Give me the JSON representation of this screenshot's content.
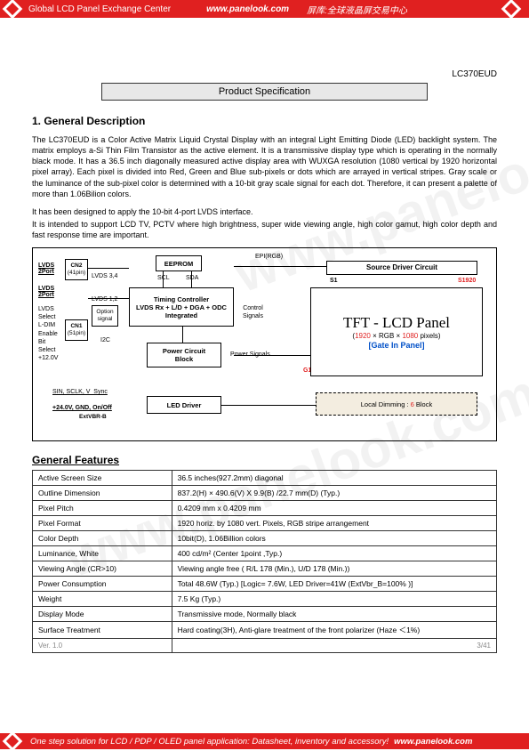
{
  "header": {
    "left": "Global LCD Panel Exchange Center",
    "url": "www.panelook.com",
    "cn": "屏库:全球液晶屏交易中心"
  },
  "footer": {
    "text": "One step solution for LCD / PDP / OLED panel application: Datasheet, inventory and accessory!",
    "url": "www.panelook.com"
  },
  "product_id": "LC370EUD",
  "spec_title": "Product Specification",
  "section_title": "1. General Description",
  "paragraphs": [
    "The LC370EUD is a Color Active Matrix Liquid Crystal Display with an integral Light Emitting Diode (LED) backlight system. The matrix employs a-Si Thin Film Transistor as the active element. It is a transmissive display type which is operating in the normally black mode. It has a 36.5 inch diagonally measured active display area with WUXGA resolution (1080 vertical by 1920 horizontal pixel array). Each pixel is divided into Red, Green and Blue sub-pixels or dots which are arrayed in vertical stripes. Gray scale or the luminance of the sub-pixel color is determined with a 10-bit gray scale signal for each dot. Therefore, it can present a palette of more than 1.06Bilion colors.",
    "It has been designed to apply the 10-bit 4-port LVDS interface.",
    "It is intended to support LCD TV, PCTV where high brightness, super wide viewing angle, high color gamut, high color depth and fast response time are important."
  ],
  "diagram": {
    "lvds1": "LVDS\n2Port",
    "lvds2": "LVDS\n2Port",
    "cn2": "CN2",
    "cn2pin": "(41pin)",
    "cn1": "CN1",
    "cn1pin": "(51pin)",
    "lvds34": "LVDS 3,4",
    "lvds12": "LVDS 1,2",
    "option": "Option\nsignal",
    "sidelabels": "LVDS\nSelect\nL-DIM\nEnable\nBit\nSelect\n+12.0V",
    "i2c": "I2C",
    "eeprom": "EEPROM",
    "scl": "SCL",
    "sda": "SDA",
    "timing": "Timing Controller\nLVDS Rx + L/D + DGA + ODC\nIntegrated",
    "power": "Power Circuit\nBlock",
    "led": "LED Driver",
    "sin": "SIN, SCLK, V_Sync",
    "v24": "+24.0V, GND, On/Off",
    "extv": "ExtVBR-B",
    "epi": "EPI(RGB)",
    "ctrl": "Control\nSignals",
    "pwrsig": "Power Signals",
    "source": "Source Driver Circuit",
    "s1": "S1",
    "s1920": "S1920",
    "g1": "G1",
    "g1080": "G1080",
    "tft1": "TFT - LCD Panel",
    "tft2a": "(",
    "tft2b": "1920",
    "tft2c": " × RGB × ",
    "tft2d": "1080",
    "tft2e": " pixels)",
    "tft3": "[Gate In Panel]",
    "local1": "Local Dimming : ",
    "local2": "6",
    "local3": " Block"
  },
  "features_title": "General Features",
  "features": [
    [
      "Active Screen Size",
      "36.5 inches(927.2mm) diagonal"
    ],
    [
      "Outline Dimension",
      "837.2(H) × 490.6(V) X 9.9(B) /22.7 mm(D) (Typ.)"
    ],
    [
      "Pixel Pitch",
      "0.4209 mm x 0.4209 mm"
    ],
    [
      "Pixel Format",
      "1920 horiz. by 1080 vert. Pixels, RGB stripe arrangement"
    ],
    [
      "Color Depth",
      "10bit(D), 1.06Billion colors"
    ],
    [
      "Luminance, White",
      "400 cd/m² (Center 1point ,Typ.)"
    ],
    [
      "Viewing Angle (CR>10)",
      "Viewing angle free ( R/L 178 (Min.), U/D 178 (Min.))"
    ],
    [
      "Power Consumption",
      "Total 48.6W (Typ.) [Logic= 7.6W, LED Driver=41W (ExtVbr_B=100% )]"
    ],
    [
      "Weight",
      "7.5 Kg (Typ.)"
    ],
    [
      "Display Mode",
      "Transmissive mode, Normally black"
    ],
    [
      "Surface Treatment",
      "Hard coating(3H), Anti-glare treatment of the front polarizer (Haze ＜1%)"
    ]
  ],
  "version": "Ver. 1.0",
  "page_no": "3/41"
}
